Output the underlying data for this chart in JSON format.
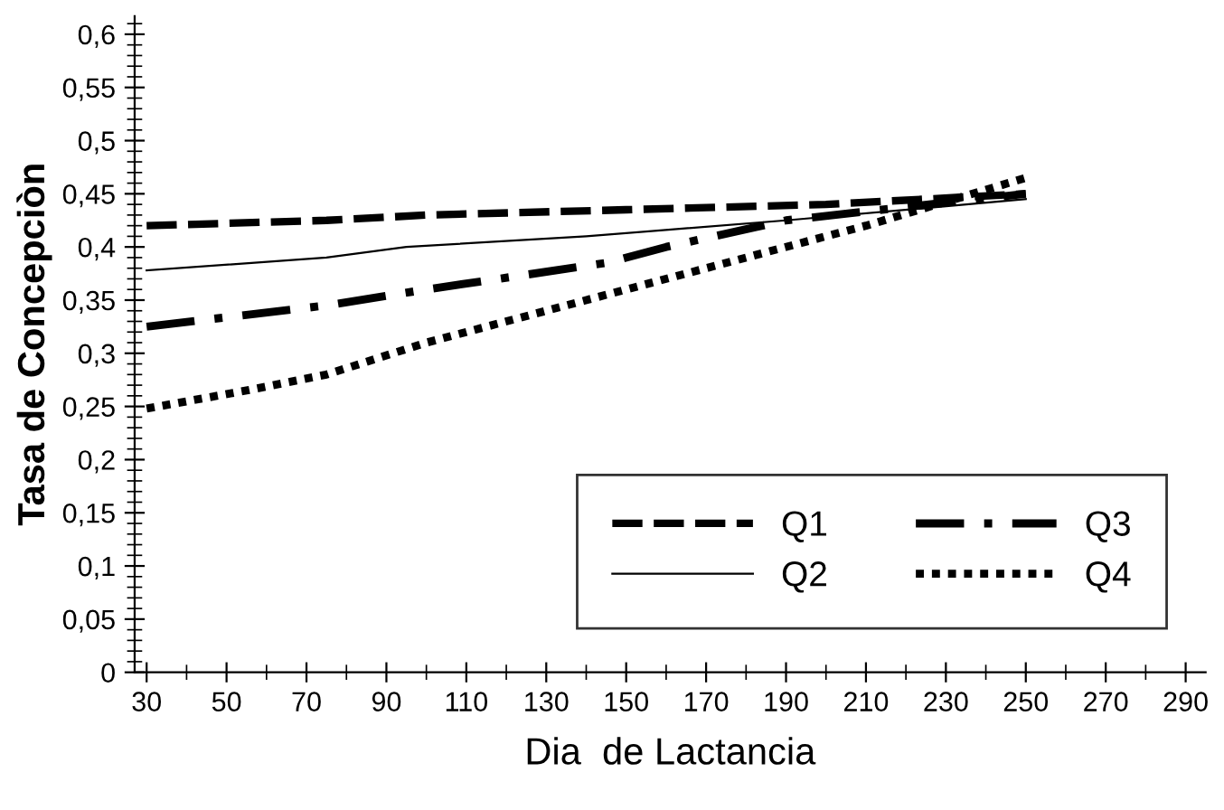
{
  "chart_data": {
    "type": "line",
    "xlabel": "Dia  de Lactancia",
    "ylabel": "Tasa de Concepciòn",
    "xlim": [
      27,
      295
    ],
    "xticks": [
      30,
      50,
      70,
      90,
      110,
      130,
      150,
      170,
      190,
      210,
      230,
      250,
      270,
      290
    ],
    "ylim": [
      0,
      0.617
    ],
    "yticks": [
      {
        "value": 0,
        "label": "0"
      },
      {
        "value": 0.05,
        "label": "0,05"
      },
      {
        "value": 0.1,
        "label": "0,1"
      },
      {
        "value": 0.15,
        "label": "0,15"
      },
      {
        "value": 0.2,
        "label": "0,2"
      },
      {
        "value": 0.25,
        "label": "0,25"
      },
      {
        "value": 0.3,
        "label": "0,3"
      },
      {
        "value": 0.35,
        "label": "0,35"
      },
      {
        "value": 0.4,
        "label": "0,4"
      },
      {
        "value": 0.45,
        "label": "0,45"
      },
      {
        "value": 0.5,
        "label": "0,5"
      },
      {
        "value": 0.55,
        "label": "0,55"
      },
      {
        "value": 0.6,
        "label": "0,6"
      }
    ],
    "grid": false,
    "legend": "bottom right",
    "marker": "none",
    "series": [
      {
        "name": "Q1",
        "color": "#000000",
        "line_style": "dashed",
        "x": [
          30,
          75,
          100,
          150,
          200,
          250
        ],
        "values": [
          0.42,
          0.425,
          0.43,
          0.435,
          0.44,
          0.45
        ]
      },
      {
        "name": "Q2",
        "color": "#000000",
        "line_style": "solid",
        "x": [
          30,
          75,
          95,
          140,
          190,
          250
        ],
        "values": [
          0.378,
          0.39,
          0.4,
          0.41,
          0.425,
          0.445
        ]
      },
      {
        "name": "Q3",
        "color": "#000000",
        "line_style": "dashdot",
        "x": [
          30,
          75,
          100,
          145,
          160,
          190,
          250
        ],
        "values": [
          0.325,
          0.345,
          0.36,
          0.385,
          0.4,
          0.425,
          0.45
        ]
      },
      {
        "name": "Q4",
        "color": "#000000",
        "line_style": "dotted",
        "x": [
          30,
          55,
          75,
          100,
          140,
          165,
          210,
          250
        ],
        "values": [
          0.248,
          0.265,
          0.28,
          0.31,
          0.35,
          0.375,
          0.42,
          0.465
        ]
      }
    ]
  }
}
